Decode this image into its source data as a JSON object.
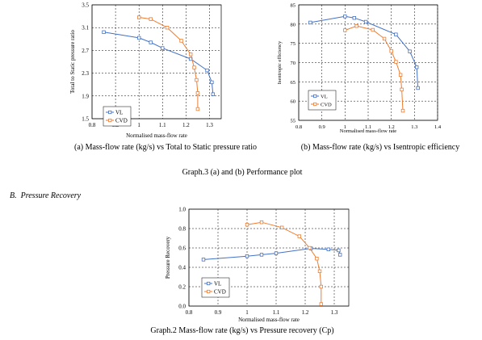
{
  "figures": {
    "graph3": {
      "caption_a": "(a) Mass-flow rate (kg/s) vs Total to Static pressure ratio",
      "caption_b": "(b) Mass-flow rate (kg/s) vs Isentropic efficiency",
      "caption": "Graph.3 (a) and (b) Performance plot"
    },
    "section": {
      "number": "B.",
      "title": "Pressure Recovery"
    },
    "graph2": {
      "caption": "Graph.2 Mass-flow rate (kg/s) vs Pressure recovery (Cp)"
    }
  },
  "chart_data": [
    {
      "id": "pressure_ratio",
      "type": "line",
      "title": "",
      "xlabel": "Normalised mass-flow rate",
      "ylabel": "Total to Static pressure ratio",
      "xlim": [
        0.8,
        1.35
      ],
      "ylim": [
        1.5,
        3.5
      ],
      "xticks": [
        0.8,
        0.9,
        1.0,
        1.1,
        1.2,
        1.3
      ],
      "yticks": [
        1.5,
        1.9,
        2.3,
        2.7,
        3.1,
        3.5
      ],
      "xtick_labels": [
        "0.8",
        "0.9",
        "1",
        "1.1",
        "1.2",
        "1.3"
      ],
      "ytick_labels": [
        "1.5",
        "1.9",
        "2.3",
        "2.7",
        "3.1",
        "3.5"
      ],
      "grid": true,
      "legend": "bottom-left",
      "series": [
        {
          "name": "VL",
          "color": "#4472c4",
          "x": [
            0.85,
            1.0,
            1.05,
            1.1,
            1.22,
            1.29,
            1.31,
            1.315
          ],
          "y": [
            3.02,
            2.92,
            2.84,
            2.74,
            2.55,
            2.35,
            2.14,
            1.93
          ]
        },
        {
          "name": "CVD",
          "color": "#ed7d31",
          "x": [
            1.0,
            1.05,
            1.12,
            1.18,
            1.22,
            1.235,
            1.245,
            1.25,
            1.25
          ],
          "y": [
            3.28,
            3.25,
            3.1,
            2.87,
            2.63,
            2.4,
            2.18,
            1.95,
            1.67
          ]
        }
      ]
    },
    {
      "id": "efficiency",
      "type": "line",
      "title": "",
      "xlabel": "Normalised mass-flow rate",
      "ylabel": "Isentropic efficiency",
      "xlim": [
        0.8,
        1.4
      ],
      "ylim": [
        55,
        85
      ],
      "xticks": [
        0.8,
        0.9,
        1.0,
        1.1,
        1.2,
        1.3,
        1.4
      ],
      "yticks": [
        55,
        60,
        65,
        70,
        75,
        80,
        85
      ],
      "xtick_labels": [
        "0.8",
        "0.9",
        "1",
        "1.1",
        "1.2",
        "1.3",
        "1.4"
      ],
      "ytick_labels": [
        "55",
        "60",
        "65",
        "70",
        "75",
        "80",
        "85"
      ],
      "grid": true,
      "legend": "bottom-left",
      "series": [
        {
          "name": "VL",
          "color": "#4472c4",
          "x": [
            0.85,
            1.0,
            1.04,
            1.09,
            1.22,
            1.28,
            1.31,
            1.315
          ],
          "y": [
            80.4,
            82.0,
            81.6,
            80.6,
            77.3,
            72.9,
            68.8,
            63.4
          ]
        },
        {
          "name": "CVD",
          "color": "#ed7d31",
          "x": [
            1.0,
            1.05,
            1.12,
            1.17,
            1.2,
            1.22,
            1.24,
            1.245,
            1.25
          ],
          "y": [
            78.4,
            79.5,
            78.5,
            76.2,
            73.0,
            70.2,
            66.8,
            63.0,
            57.5
          ]
        }
      ]
    },
    {
      "id": "pressure_recovery",
      "type": "line",
      "title": "",
      "xlabel": "Normalised mass-flow rate",
      "ylabel": "Pressure Recovery",
      "xlim": [
        0.8,
        1.35
      ],
      "ylim": [
        0.0,
        1.0
      ],
      "xticks": [
        0.8,
        0.9,
        1.0,
        1.1,
        1.2,
        1.3
      ],
      "yticks": [
        0.0,
        0.2,
        0.4,
        0.6,
        0.8,
        1.0
      ],
      "xtick_labels": [
        "0.8",
        "0.9",
        "1",
        "1.1",
        "1.2",
        "1.3"
      ],
      "ytick_labels": [
        "0.0",
        "0.2",
        "0.4",
        "0.6",
        "0.8",
        "1.0"
      ],
      "grid": true,
      "legend": "bottom-left",
      "series": [
        {
          "name": "VL",
          "color": "#4472c4",
          "x": [
            0.85,
            1.0,
            1.05,
            1.1,
            1.22,
            1.28,
            1.315,
            1.32
          ],
          "y": [
            0.48,
            0.515,
            0.53,
            0.545,
            0.595,
            0.585,
            0.575,
            0.53
          ]
        },
        {
          "name": "CVD",
          "color": "#ed7d31",
          "x": [
            1.0,
            1.05,
            1.12,
            1.18,
            1.215,
            1.24,
            1.25,
            1.255,
            1.255
          ],
          "y": [
            0.84,
            0.865,
            0.81,
            0.72,
            0.6,
            0.49,
            0.36,
            0.2,
            0.02
          ]
        }
      ]
    }
  ]
}
